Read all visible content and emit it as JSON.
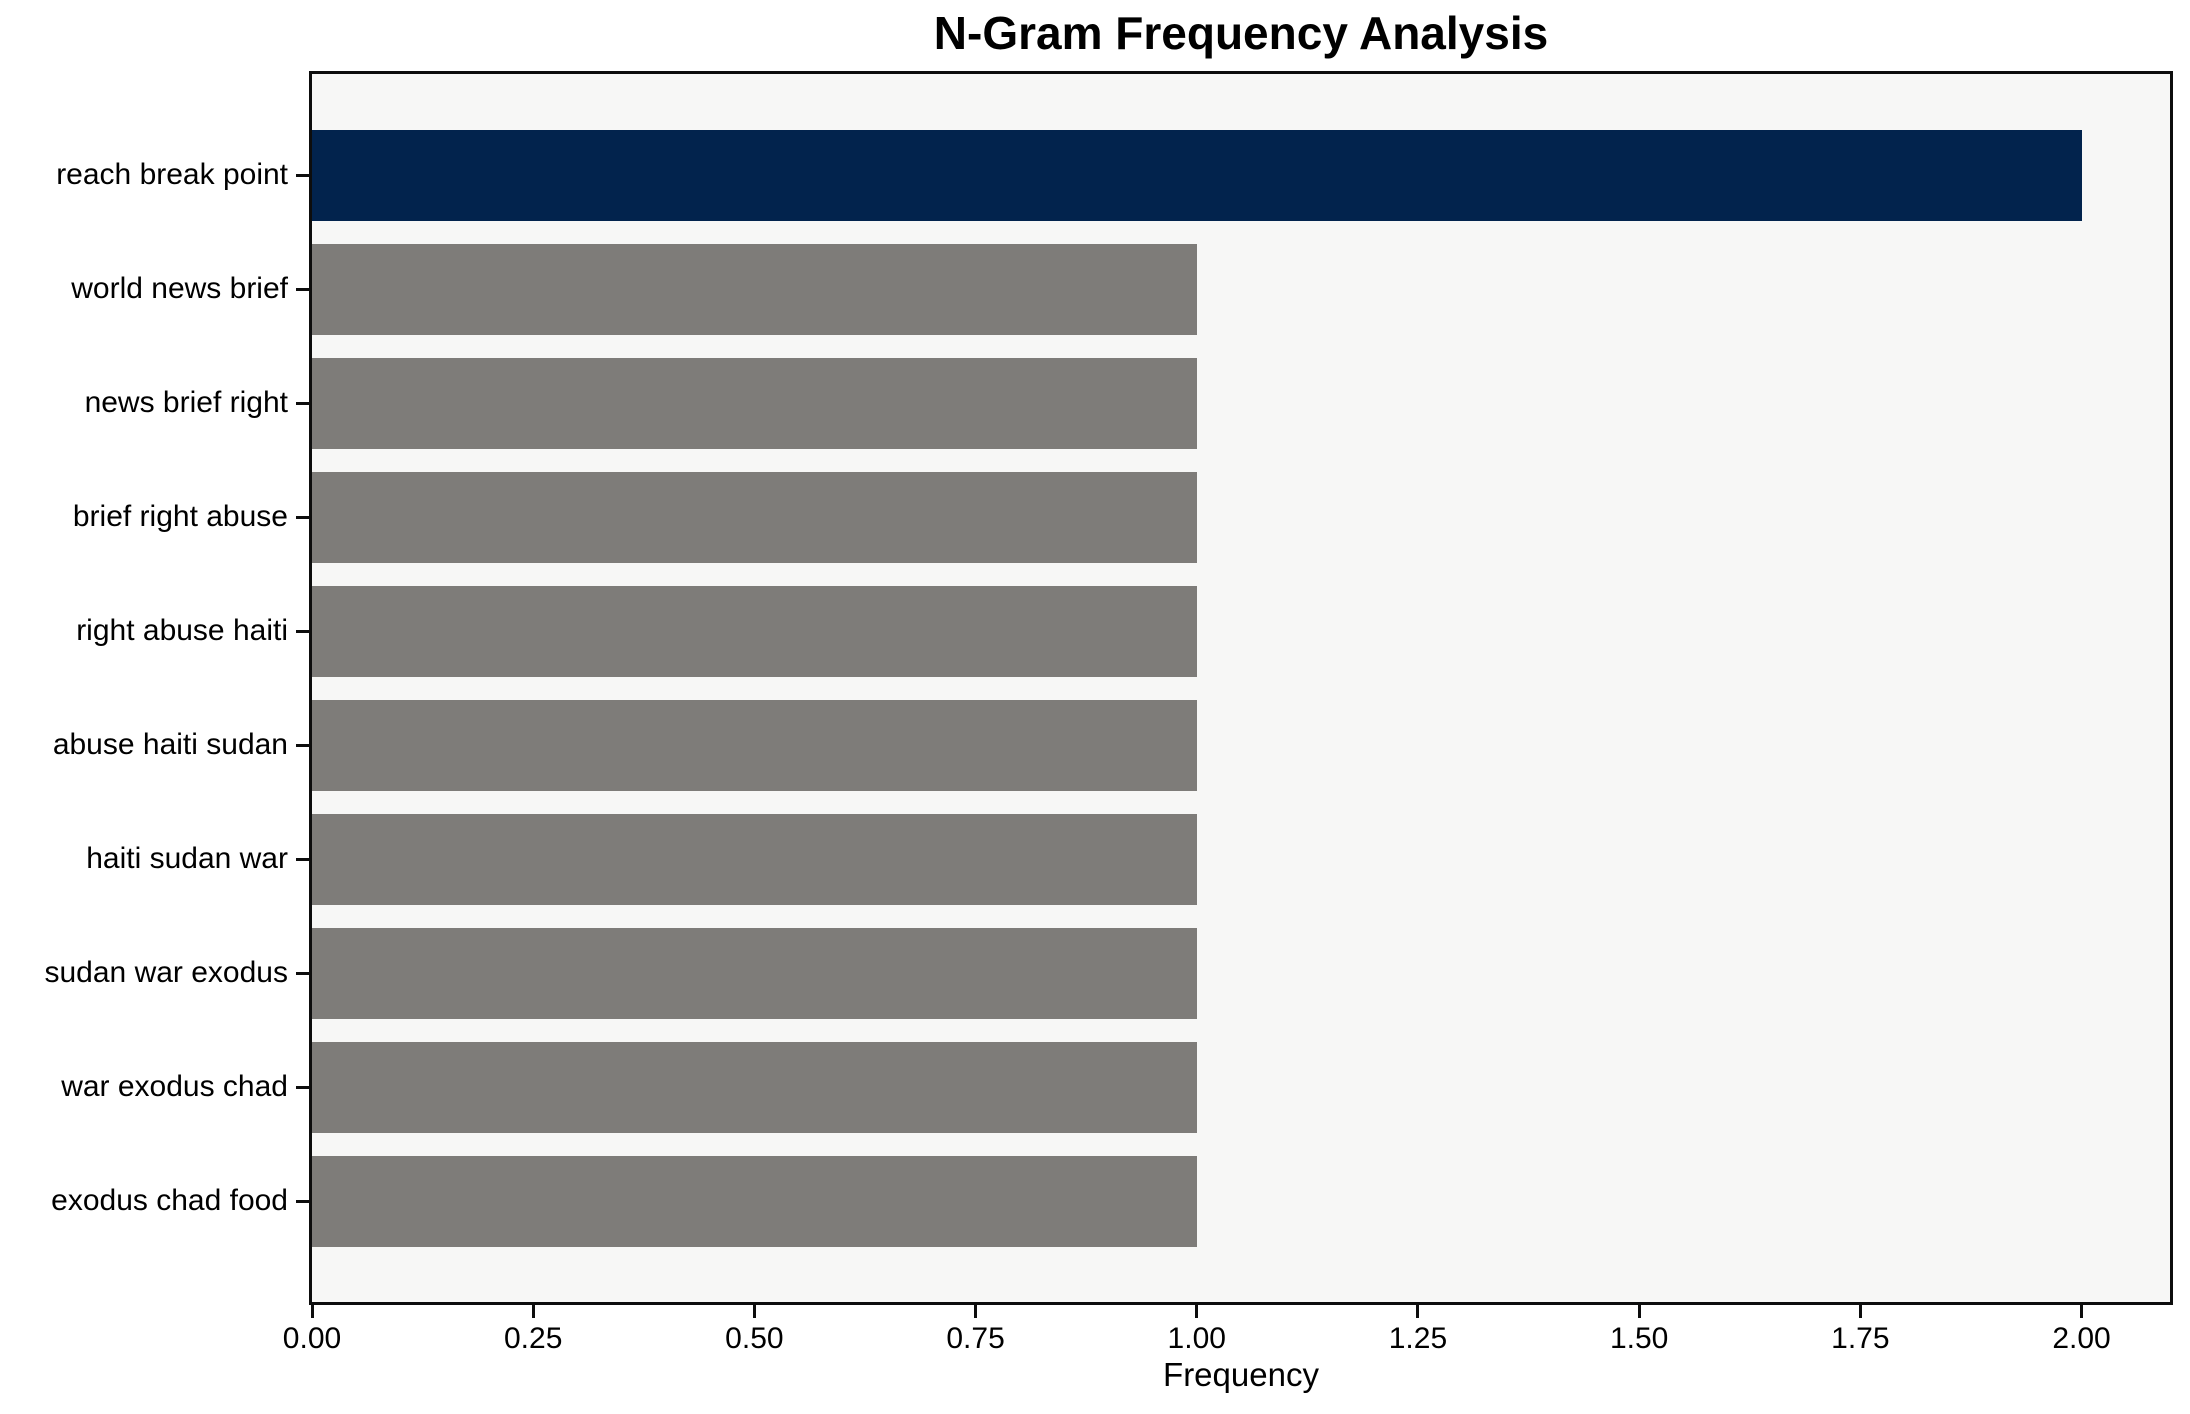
{
  "chart_data": {
    "type": "bar",
    "orientation": "horizontal",
    "title": "N-Gram Frequency Analysis",
    "xlabel": "Frequency",
    "ylabel": "",
    "categories": [
      "reach break point",
      "world news brief",
      "news brief right",
      "brief right abuse",
      "right abuse haiti",
      "abuse haiti sudan",
      "haiti sudan war",
      "sudan war exodus",
      "war exodus chad",
      "exodus chad food"
    ],
    "values": [
      2,
      1,
      1,
      1,
      1,
      1,
      1,
      1,
      1,
      1
    ],
    "bar_colors": [
      "#02234d",
      "#7e7c79",
      "#7e7c79",
      "#7e7c79",
      "#7e7c79",
      "#7e7c79",
      "#7e7c79",
      "#7e7c79",
      "#7e7c79",
      "#7e7c79"
    ],
    "xlim": [
      0,
      2.1
    ],
    "x_ticks": [
      "0.00",
      "0.25",
      "0.50",
      "0.75",
      "1.00",
      "1.25",
      "1.50",
      "1.75",
      "2.00"
    ],
    "grid": false,
    "legend_position": "none",
    "colors": {
      "highlight_bar": "#02234d",
      "default_bar": "#7e7c79",
      "plot_background": "#f7f7f6",
      "figure_background": "#ffffff",
      "spine": "#0d0d0d",
      "text": "#000000"
    }
  }
}
